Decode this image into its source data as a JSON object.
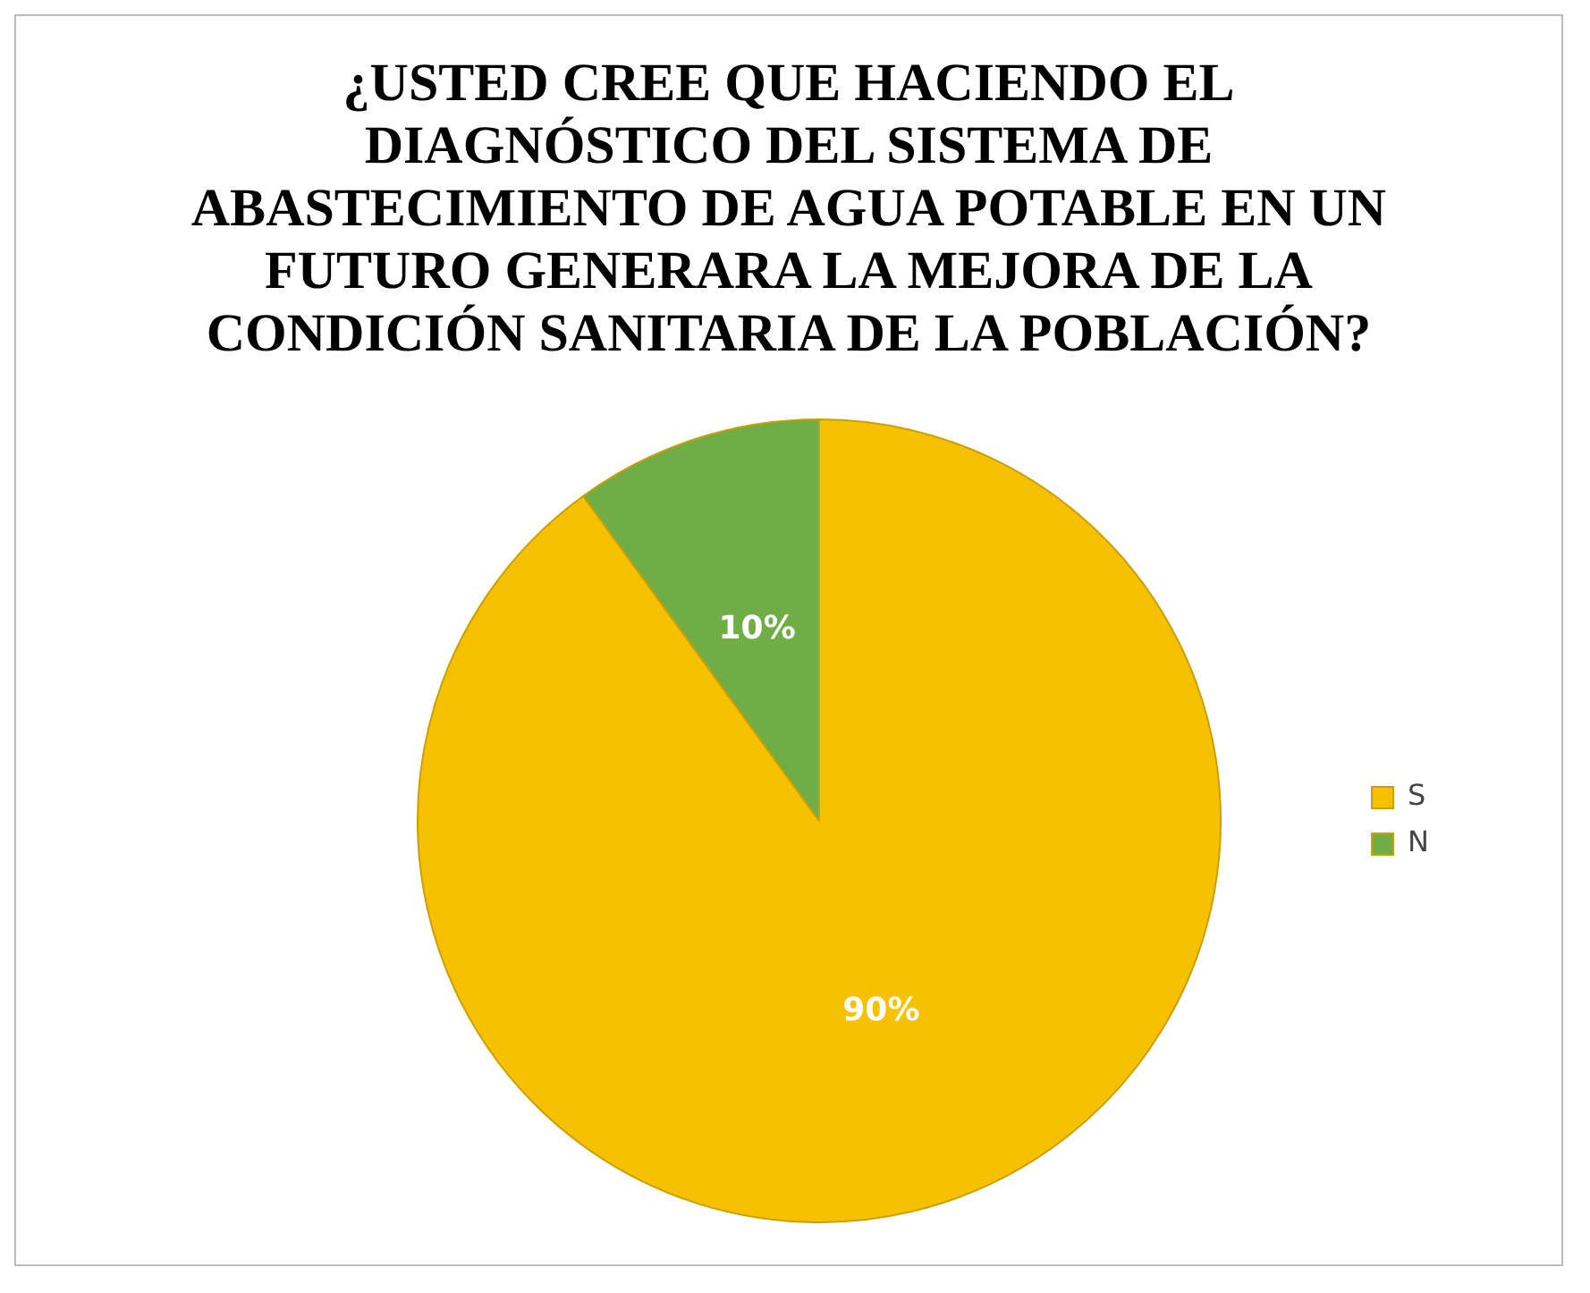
{
  "chart_data": {
    "type": "pie",
    "title": "¿USTED CREE QUE HACIENDO EL DIAGNÓSTICO DEL SISTEMA DE ABASTECIMIENTO DE AGUA POTABLE EN UN FUTURO GENERARA LA MEJORA DE LA CONDICIÓN SANITARIA DE LA POBLACIÓN?",
    "categories": [
      "S",
      "N"
    ],
    "values": [
      90,
      10
    ],
    "colors": [
      "#f7c000",
      "#70ad47"
    ],
    "value_labels": [
      "90%",
      "10%"
    ],
    "legend": "right"
  }
}
